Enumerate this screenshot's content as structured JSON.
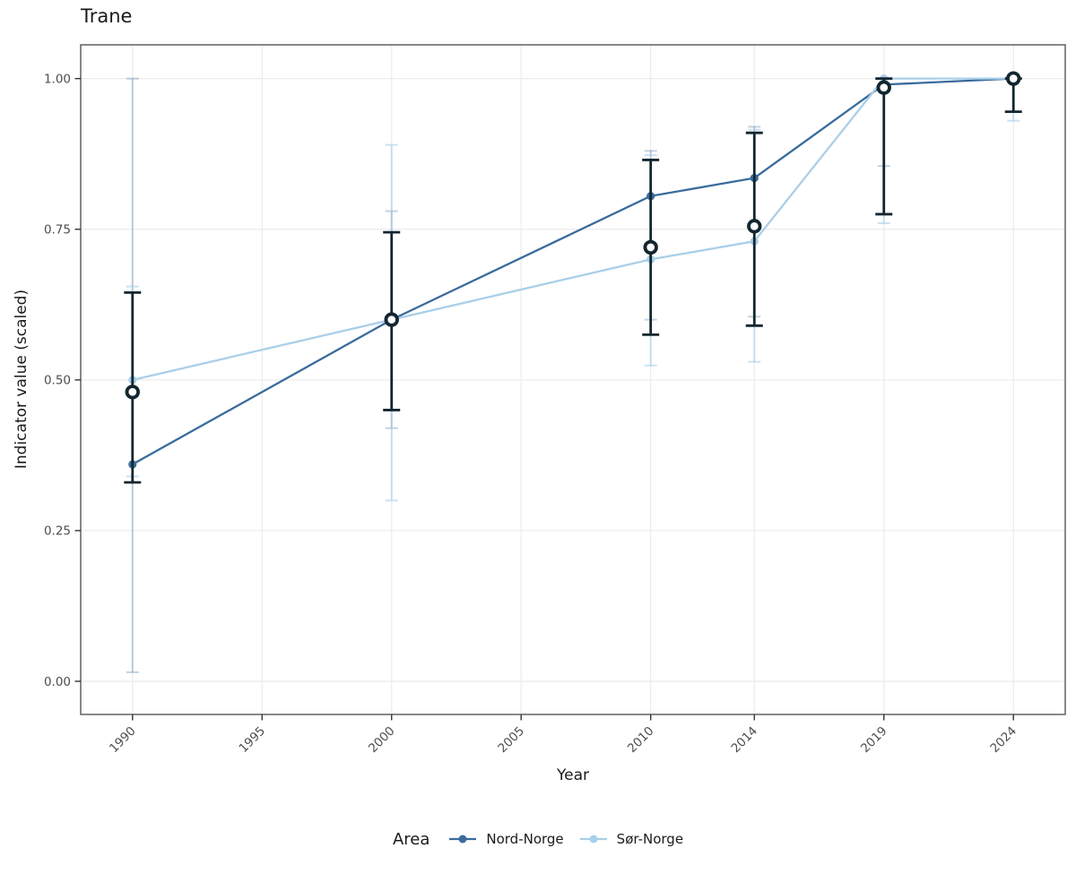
{
  "chart_data": {
    "type": "line",
    "title": "Trane",
    "xlabel": "Year",
    "ylabel": "Indicator value (scaled)",
    "legend": {
      "title": "Area",
      "position": "bottom"
    },
    "grid": true,
    "axis": {
      "x_ticks": [
        1990,
        1995,
        2000,
        2005,
        2010,
        2014,
        2019,
        2024
      ],
      "y_ticks": [
        0,
        0.25,
        0.5,
        0.75,
        1
      ],
      "y_tick_labels": [
        "0.00",
        "0.25",
        "0.50",
        "0.75",
        "1.00"
      ],
      "xlim": [
        1988,
        2026
      ],
      "ylim": [
        -0.055,
        1.056
      ]
    },
    "x": [
      1990,
      2000,
      2010,
      2014,
      2019,
      2024
    ],
    "series": [
      {
        "name": "Nord-Norge",
        "color": "#3a6b9c",
        "ci_opacity": 0.3,
        "values": [
          0.36,
          0.6,
          0.805,
          0.835,
          0.99,
          1.0
        ],
        "ci_low": [
          0.015,
          0.42,
          0.6,
          0.605,
          0.855,
          0.945
        ],
        "ci_high": [
          1.0,
          0.78,
          0.88,
          0.92,
          1.0,
          1.0
        ]
      },
      {
        "name": "Sør-Norge",
        "color": "#a9cfe9",
        "ci_opacity": 0.6,
        "values": [
          0.5,
          0.6,
          0.7,
          0.73,
          1.0,
          1.0
        ],
        "ci_low": [
          0.34,
          0.3,
          0.524,
          0.53,
          0.76,
          0.93
        ],
        "ci_high": [
          0.655,
          0.89,
          0.873,
          0.915,
          1.0,
          1.0
        ]
      }
    ],
    "overlay_points": {
      "marker": "open-circle",
      "color": "#13262f",
      "values": [
        0.48,
        0.6,
        0.72,
        0.755,
        0.985,
        1.0
      ],
      "ci_low": [
        0.33,
        0.45,
        0.575,
        0.59,
        0.775,
        0.945
      ],
      "ci_high": [
        0.645,
        0.745,
        0.865,
        0.91,
        1.0,
        1.0
      ]
    },
    "colors": {
      "grid": "#ebebeb",
      "panel_border": "#555555",
      "tick_mark": "#333333",
      "tick_text": "#4d4d4d",
      "text": "#1a1a1a",
      "background": "#ffffff"
    }
  }
}
